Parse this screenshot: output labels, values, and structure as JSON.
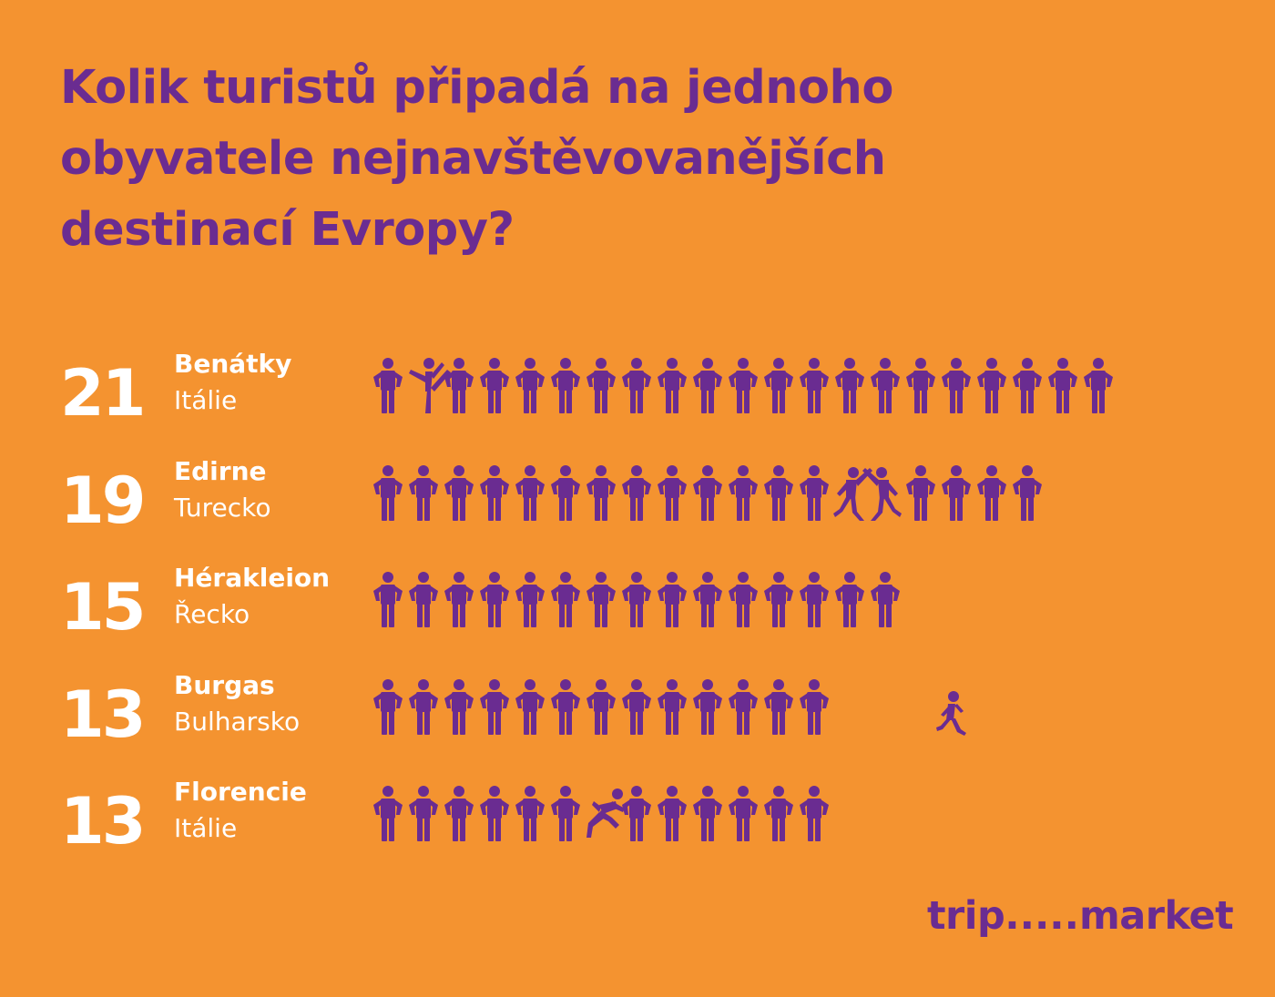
{
  "title": {
    "line1": "Kolik turistů připadá na jednoho",
    "line2": "obyvatele nejnavštěvovanějších",
    "line3": "destinací Evropy?"
  },
  "colors": {
    "background": "#F49330",
    "accent": "#6A2C91",
    "text_light": "#FFFFFF"
  },
  "icon": "person-icon",
  "chart_data": {
    "type": "pictogram",
    "title": "Kolik turistů připadá na jednoho obyvatele nejnavštěvovanějších destinací Evropy?",
    "unit_icon": "person-icon",
    "rows": [
      {
        "value": "21",
        "count": 21,
        "city": "Benátky",
        "country": "Itálie",
        "special": [
          {
            "index": 1,
            "icon": "kicking-person-icon"
          }
        ]
      },
      {
        "value": "19",
        "count": 19,
        "city": "Edirne",
        "country": "Turecko",
        "special": [
          {
            "index": 13,
            "icon": "dancing-person-icon"
          },
          {
            "index": 14,
            "icon": "dancing-person-icon"
          }
        ]
      },
      {
        "value": "15",
        "count": 15,
        "city": "Hérakleion",
        "country": "Řecko",
        "special": []
      },
      {
        "value": "13",
        "count": 13,
        "city": "Burgas",
        "country": "Bulharsko",
        "special": [],
        "extra": {
          "icon": "walking-person-icon",
          "note": "one figure walking away"
        }
      },
      {
        "value": "13",
        "count": 13,
        "city": "Florencie",
        "country": "Itálie",
        "special": [
          {
            "index": 6,
            "icon": "jumping-person-icon"
          }
        ]
      }
    ]
  },
  "logo": {
    "left": "trip",
    "dots": ".....",
    "right": "market"
  }
}
